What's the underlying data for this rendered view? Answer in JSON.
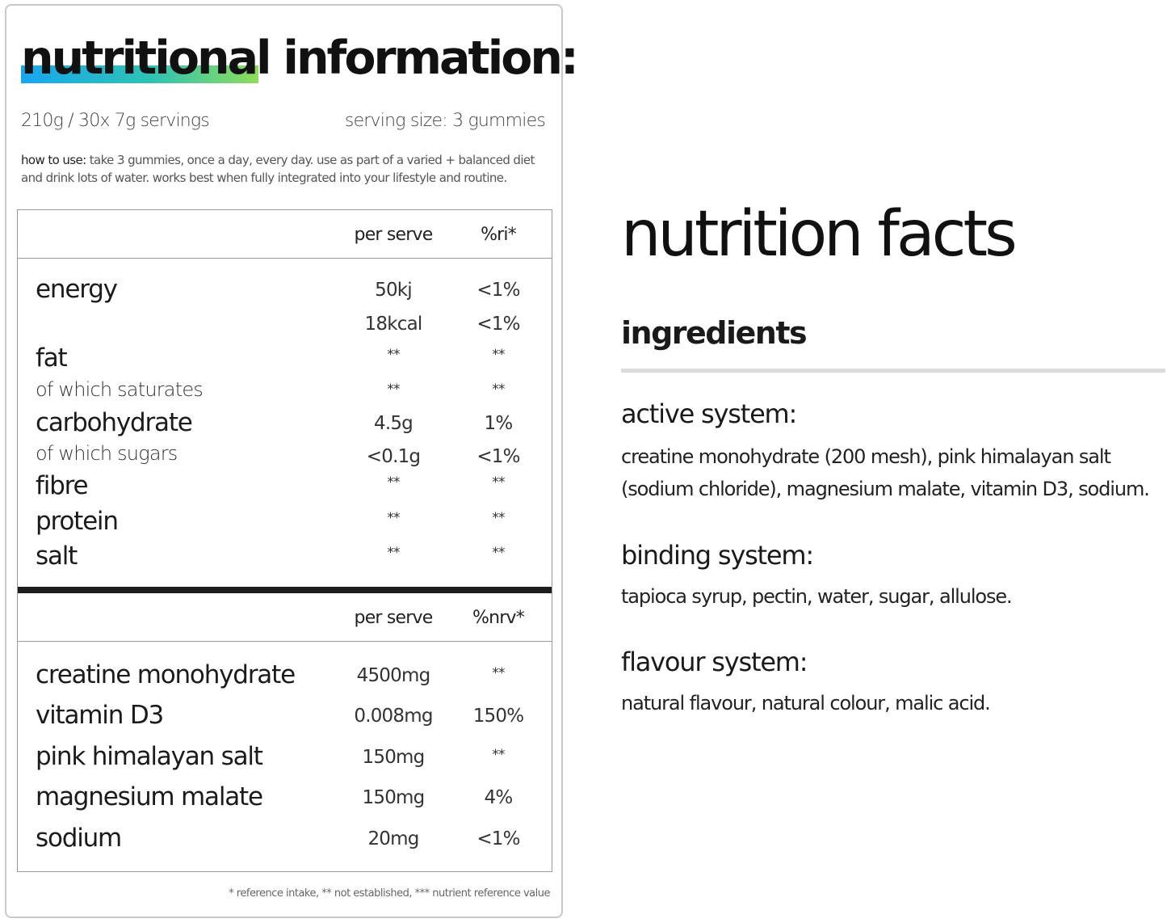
{
  "panel": {
    "title": "nutritional information:",
    "pack": "210g / 30x 7g servings",
    "serving": "serving size: 3 gummies",
    "howto_label": "how to use:",
    "howto_text": " take 3 gummies, once a day, every day. use as part of a varied + balanced diet and drink lots of water. works best when fully integrated into your lifestyle and routine.",
    "table1": {
      "col1": "per serve",
      "col2": "%ri*",
      "rows": [
        {
          "label": "energy",
          "v1": "50kj",
          "v2": "<1%"
        },
        {
          "label": "",
          "v1": "18kcal",
          "v2": "<1%"
        },
        {
          "label": "fat",
          "v1": "**",
          "v2": "**"
        },
        {
          "label": "of which saturates",
          "v1": "**",
          "v2": "**"
        },
        {
          "label": "carbohydrate",
          "v1": "4.5g",
          "v2": "1%"
        },
        {
          "label": "of which sugars",
          "v1": "<0.1g",
          "v2": "<1%"
        },
        {
          "label": "fibre",
          "v1": "**",
          "v2": "**"
        },
        {
          "label": "protein",
          "v1": "**",
          "v2": "**"
        },
        {
          "label": "salt",
          "v1": "**",
          "v2": "**"
        }
      ]
    },
    "table2": {
      "col1": "per serve",
      "col2": "%nrv*",
      "rows": [
        {
          "label": "creatine monohydrate",
          "v1": "4500mg",
          "v2": "**"
        },
        {
          "label": "vitamin D3",
          "v1": "0.008mg",
          "v2": "150%"
        },
        {
          "label": "pink himalayan salt",
          "v1": "150mg",
          "v2": "**"
        },
        {
          "label": "magnesium malate",
          "v1": "150mg",
          "v2": "4%"
        },
        {
          "label": "sodium",
          "v1": "20mg",
          "v2": "<1%"
        }
      ]
    },
    "footnote": "* reference intake, ** not established, *** nutrient reference value"
  },
  "facts": {
    "title": "nutrition facts",
    "ingredients_heading": "ingredients",
    "active_heading": "active system:",
    "active_text": "creatine monohydrate (200 mesh), pink himalayan salt (sodium chloride), magnesium malate, vitamin D3, sodium.",
    "binding_heading": "binding system:",
    "binding_text": "tapioca syrup, pectin, water, sugar, allulose.",
    "flavour_heading": "flavour system:",
    "flavour_text": "natural flavour, natural colour, malic acid."
  },
  "colors": {
    "gradient_start": "#16a7f0",
    "gradient_mid": "#2ec3b4",
    "gradient_end": "#8fdc5a"
  }
}
